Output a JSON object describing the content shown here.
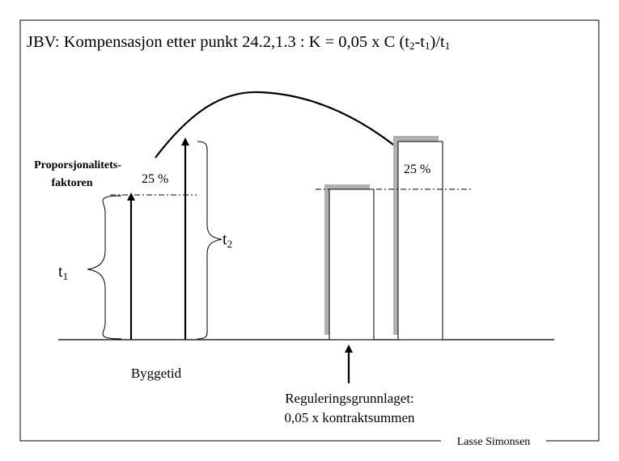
{
  "title": {
    "main": "JBV: Kompensasjon etter punkt 24.2,1.3 : K = 0,05 x C (t",
    "sub1": "2",
    "mid": "-t",
    "sub2": "1",
    "mid2": ")/t",
    "sub3": "1"
  },
  "labels": {
    "prop_line1": "Proporsjonalitets-",
    "prop_line2": "faktoren",
    "pct_left": "25 %",
    "pct_right": "25 %",
    "t1_main": "t",
    "t1_sub": "1",
    "t2_main": "t",
    "t2_sub": "2",
    "byggetid": "Byggetid",
    "regulering_line1": "Reguleringsgrunnlaget:",
    "regulering_line2": "0,05 x kontraktsummen",
    "author": "Lasse Simonsen"
  },
  "colors": {
    "stroke": "#000000",
    "shadow": "#b0b0b0",
    "background": "#ffffff"
  }
}
